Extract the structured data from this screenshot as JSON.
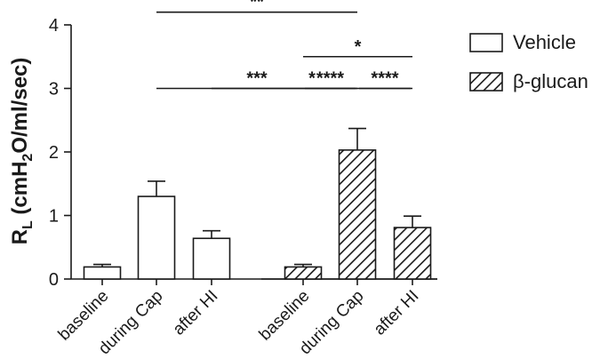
{
  "chart_data": {
    "type": "bar",
    "ylabel": {
      "main": "R",
      "sub1": "L",
      "mid": " (cmH",
      "sub2": "2",
      "tail": "O/ml/sec)"
    },
    "ylim": [
      0,
      4
    ],
    "yticks": [
      "0",
      "1",
      "2",
      "3",
      "4"
    ],
    "categories": [
      "baseline",
      "during Cap",
      "after HI"
    ],
    "series": [
      {
        "name": "Vehicle",
        "pattern": "open",
        "values": [
          0.19,
          1.3,
          0.64
        ],
        "errors": [
          0.04,
          0.24,
          0.12
        ]
      },
      {
        "name": "β-glucan",
        "pattern": "hatched",
        "values": [
          0.19,
          2.03,
          0.81
        ],
        "errors": [
          0.04,
          0.34,
          0.18
        ]
      }
    ],
    "legend": {
      "position": "top-right"
    },
    "significance": [
      {
        "from": [
          0,
          1
        ],
        "to": [
          1,
          1
        ],
        "y": 3.0,
        "label": "***"
      },
      {
        "from": [
          0,
          2
        ],
        "to": [
          1,
          2
        ],
        "y": 3.0,
        "label": "*"
      },
      {
        "from": [
          1,
          0
        ],
        "to": [
          1,
          1
        ],
        "y": 3.0,
        "label": "****"
      },
      {
        "from": [
          1,
          1
        ],
        "to": [
          1,
          2
        ],
        "y": 3.0,
        "label": "****"
      },
      {
        "from": [
          1,
          0
        ],
        "to": [
          1,
          2
        ],
        "y": 3.5,
        "label": "*"
      },
      {
        "from": [
          0,
          1
        ],
        "to": [
          1,
          1
        ],
        "y": 4.2,
        "label": "**"
      }
    ],
    "colors": {
      "ink": "#1a1a1a",
      "fill": "#ffffff"
    }
  }
}
